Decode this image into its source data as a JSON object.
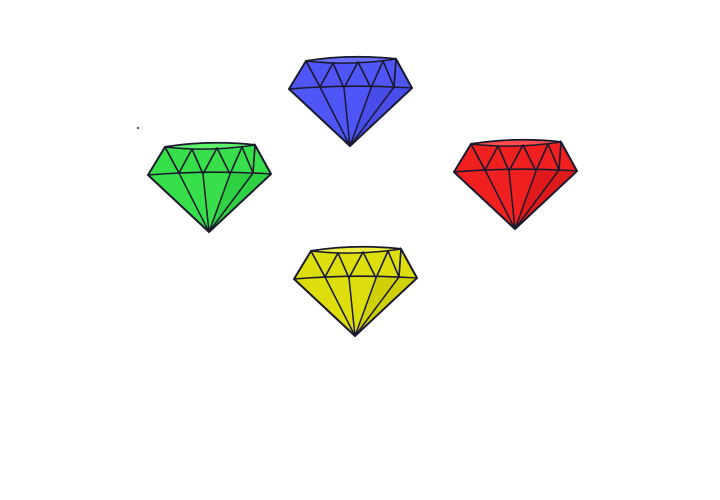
{
  "gems": [
    {
      "id": "blue",
      "color": "#5055f7",
      "highlight": "#6a6fff",
      "shadow": "#3a3fd0",
      "icon": "blue-gem-icon"
    },
    {
      "id": "green",
      "color": "#37e04a",
      "highlight": "#5cf06b",
      "shadow": "#23b534",
      "icon": "green-gem-icon"
    },
    {
      "id": "red",
      "color": "#f02020",
      "highlight": "#ff4a4a",
      "shadow": "#c31212",
      "icon": "red-gem-icon"
    },
    {
      "id": "yellow",
      "color": "#dede0c",
      "highlight": "#eeee44",
      "shadow": "#b8b800",
      "icon": "yellow-gem-icon"
    }
  ],
  "outline_color": "#1a1a2e"
}
